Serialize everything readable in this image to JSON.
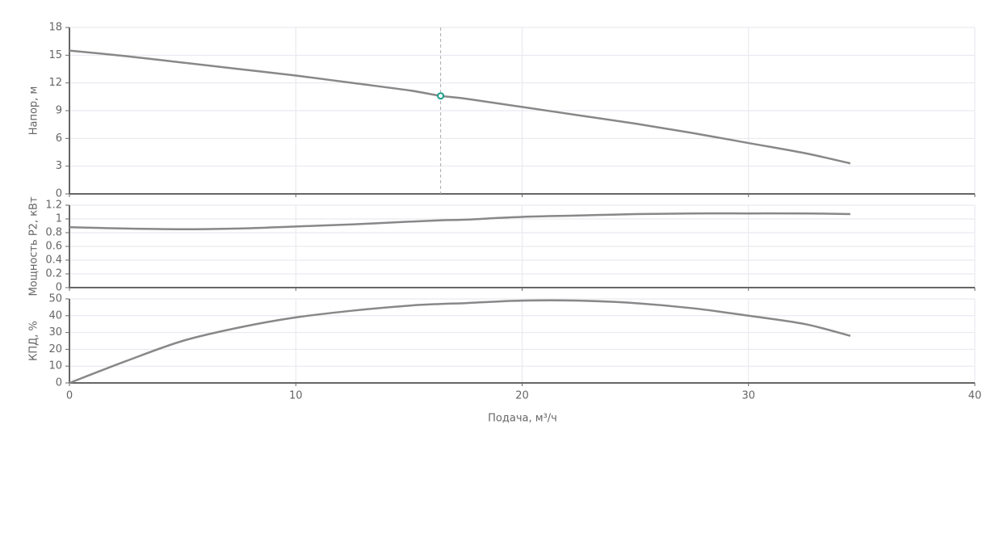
{
  "chart_data": {
    "type": "line",
    "xlabel": "Подача, м³/ч",
    "x": [
      0,
      2.5,
      5,
      7.5,
      10,
      12.5,
      15,
      16.4,
      17.5,
      20,
      22.5,
      25,
      27.5,
      30,
      32.5,
      34.5
    ],
    "xlim": [
      0,
      40
    ],
    "xticks": [
      0,
      10,
      20,
      30,
      40
    ],
    "grid": true,
    "panels": [
      {
        "ylabel": "Напор, м",
        "color": "#888888",
        "ylim": [
          0,
          18
        ],
        "yticks": [
          0,
          3,
          6,
          9,
          12,
          15,
          18
        ],
        "values": [
          15.5,
          14.9,
          14.2,
          13.5,
          12.8,
          12.0,
          11.2,
          10.6,
          10.3,
          9.4,
          8.5,
          7.6,
          6.6,
          5.5,
          4.4,
          3.3
        ],
        "operating_point": {
          "x": 16.4,
          "y": 10.6,
          "color": "#1a9a8a"
        }
      },
      {
        "ylabel": "Мощность P2, кВт",
        "color": "#888888",
        "ylim": [
          0,
          1.2
        ],
        "yticks": [
          0,
          0.2,
          0.4,
          0.6,
          0.8,
          1,
          1.2
        ],
        "values": [
          0.88,
          0.86,
          0.85,
          0.86,
          0.89,
          0.92,
          0.96,
          0.98,
          0.99,
          1.03,
          1.05,
          1.07,
          1.08,
          1.08,
          1.08,
          1.07
        ]
      },
      {
        "ylabel": "КПД, %",
        "color": "#888888",
        "ylim": [
          0,
          50
        ],
        "yticks": [
          0,
          10,
          20,
          30,
          40,
          50
        ],
        "values": [
          0,
          13,
          25,
          33,
          39,
          43,
          46,
          47,
          47.5,
          49,
          49,
          47.5,
          44.5,
          40,
          35,
          28
        ]
      }
    ]
  }
}
